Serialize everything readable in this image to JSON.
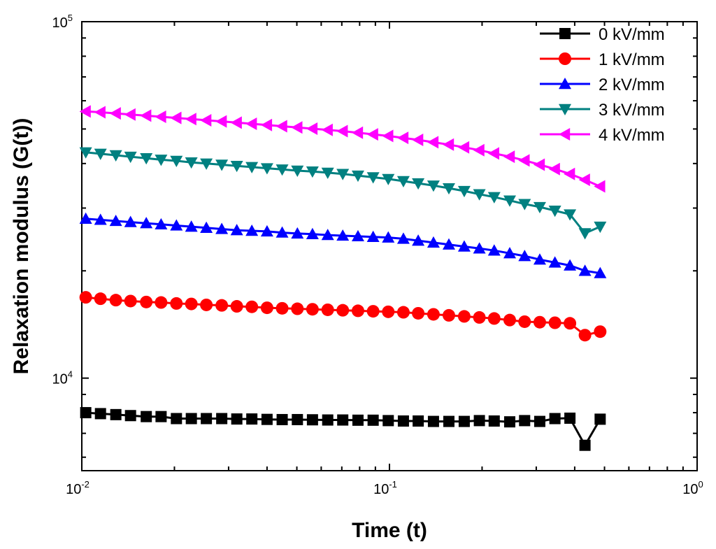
{
  "chart_data": {
    "type": "line",
    "title": "",
    "xlabel": "Time (t)",
    "ylabel": "Relaxation modulus (G(t))",
    "xscale": "log",
    "yscale": "log",
    "xlim": [
      0.01,
      1
    ],
    "ylim": [
      5500,
      100000
    ],
    "x_ticks": [
      {
        "value": 0.01,
        "base": "10",
        "exp": "-2"
      },
      {
        "value": 0.1,
        "base": "10",
        "exp": "-1"
      },
      {
        "value": 1,
        "base": "10",
        "exp": "0"
      }
    ],
    "y_ticks": [
      {
        "value": 10000,
        "base": "10",
        "exp": "4"
      },
      {
        "value": 100000,
        "base": "10",
        "exp": "5"
      }
    ],
    "legend_position": "top-right",
    "x": [
      0.0103,
      0.0115,
      0.0129,
      0.0144,
      0.0162,
      0.0181,
      0.0203,
      0.0227,
      0.0254,
      0.0285,
      0.0319,
      0.0357,
      0.04,
      0.0448,
      0.0502,
      0.0562,
      0.063,
      0.0705,
      0.079,
      0.0885,
      0.0991,
      0.111,
      0.124,
      0.139,
      0.156,
      0.175,
      0.196,
      0.219,
      0.246,
      0.275,
      0.308,
      0.345,
      0.386,
      0.432,
      0.484
    ],
    "series": [
      {
        "name": "0 kV/mm",
        "color": "#000000",
        "marker": "square",
        "values": [
          8000,
          7950,
          7900,
          7850,
          7800,
          7800,
          7700,
          7700,
          7700,
          7700,
          7680,
          7680,
          7660,
          7650,
          7650,
          7640,
          7630,
          7630,
          7620,
          7620,
          7600,
          7580,
          7580,
          7560,
          7560,
          7560,
          7600,
          7580,
          7540,
          7600,
          7560,
          7700,
          7720,
          6480,
          7670
        ]
      },
      {
        "name": "1 kV/mm",
        "color": "#ff0000",
        "marker": "circle",
        "values": [
          16850,
          16700,
          16550,
          16450,
          16350,
          16300,
          16200,
          16150,
          16050,
          16000,
          15900,
          15850,
          15750,
          15700,
          15650,
          15600,
          15550,
          15500,
          15450,
          15400,
          15350,
          15300,
          15200,
          15100,
          15000,
          14900,
          14800,
          14700,
          14550,
          14400,
          14350,
          14300,
          14250,
          13200,
          13500
        ]
      },
      {
        "name": "2 kV/mm",
        "color": "#0000ff",
        "marker": "triangle-up",
        "values": [
          28000,
          27800,
          27600,
          27400,
          27200,
          27000,
          26800,
          26600,
          26400,
          26200,
          26000,
          25900,
          25800,
          25600,
          25450,
          25350,
          25200,
          25100,
          25000,
          24900,
          24800,
          24600,
          24300,
          24000,
          23700,
          23400,
          23100,
          22800,
          22400,
          22000,
          21500,
          21100,
          20700,
          20000,
          19700
        ]
      },
      {
        "name": "3 kV/mm",
        "color": "#008080",
        "marker": "triangle-down",
        "values": [
          43000,
          42600,
          42200,
          41800,
          41400,
          41000,
          40700,
          40300,
          40000,
          39700,
          39400,
          39100,
          38800,
          38500,
          38200,
          38000,
          37700,
          37400,
          37000,
          36600,
          36200,
          35700,
          35200,
          34700,
          34100,
          33500,
          32800,
          32200,
          31500,
          30800,
          30200,
          29500,
          28800,
          25500,
          26600
        ]
      },
      {
        "name": "4 kV/mm",
        "color": "#ff00ff",
        "marker": "triangle-left",
        "values": [
          56000,
          55700,
          55300,
          54900,
          54500,
          54100,
          53700,
          53300,
          52900,
          52500,
          52100,
          51700,
          51300,
          50900,
          50500,
          50100,
          49700,
          49300,
          48800,
          48300,
          47800,
          47200,
          46600,
          45900,
          45200,
          44400,
          43600,
          42700,
          41800,
          40800,
          39700,
          38600,
          37400,
          36000,
          34500
        ]
      }
    ]
  }
}
